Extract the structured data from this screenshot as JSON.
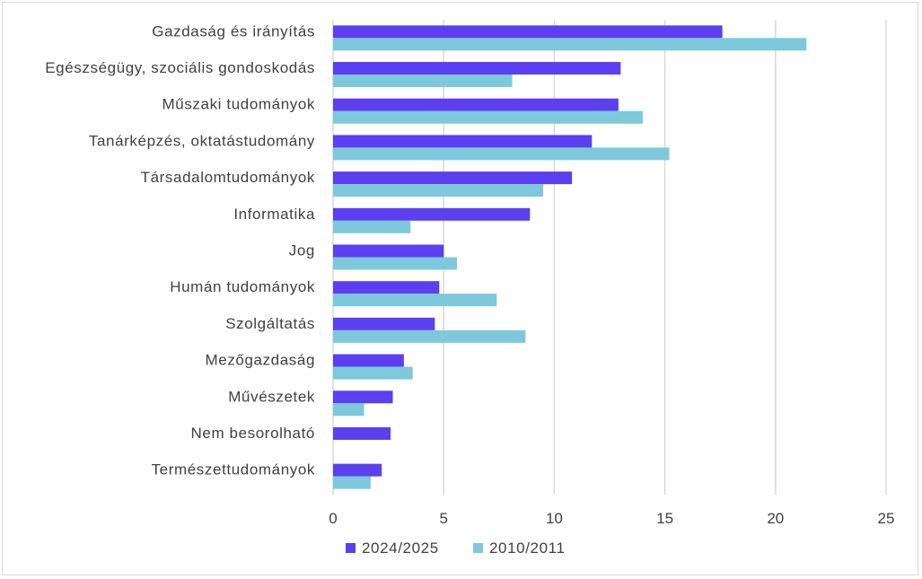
{
  "chart_data": {
    "type": "bar",
    "orientation": "horizontal",
    "title": "",
    "xlabel": "",
    "ylabel": "",
    "categories": [
      "Gazdaság és irányítás",
      "Egészségügy, szociális gondoskodás",
      "Műszaki tudományok",
      "Tanárképzés, oktatástudomány",
      "Társadalomtudományok",
      "Informatika",
      "Jog",
      "Humán tudományok",
      "Szolgáltatás",
      "Mezőgazdaság",
      "Művészetek",
      "Nem besorolható",
      "Természettudományok"
    ],
    "series": [
      {
        "name": "2024/2025",
        "color": "#5b3ff0",
        "values": [
          17.6,
          13.0,
          12.9,
          11.7,
          10.8,
          8.9,
          5.0,
          4.8,
          4.6,
          3.2,
          2.7,
          2.6,
          2.2
        ]
      },
      {
        "name": "2010/2011",
        "color": "#7ec8dc",
        "values": [
          21.4,
          8.1,
          14.0,
          15.2,
          9.5,
          3.5,
          5.6,
          7.4,
          8.7,
          3.6,
          1.4,
          0.0,
          1.7
        ]
      }
    ],
    "xlim": [
      0,
      25
    ],
    "xticks": [
      0,
      5,
      10,
      15,
      20,
      25
    ],
    "grid": "vertical",
    "gridColor": "#d9d9d9",
    "legend": "bottom-center"
  }
}
